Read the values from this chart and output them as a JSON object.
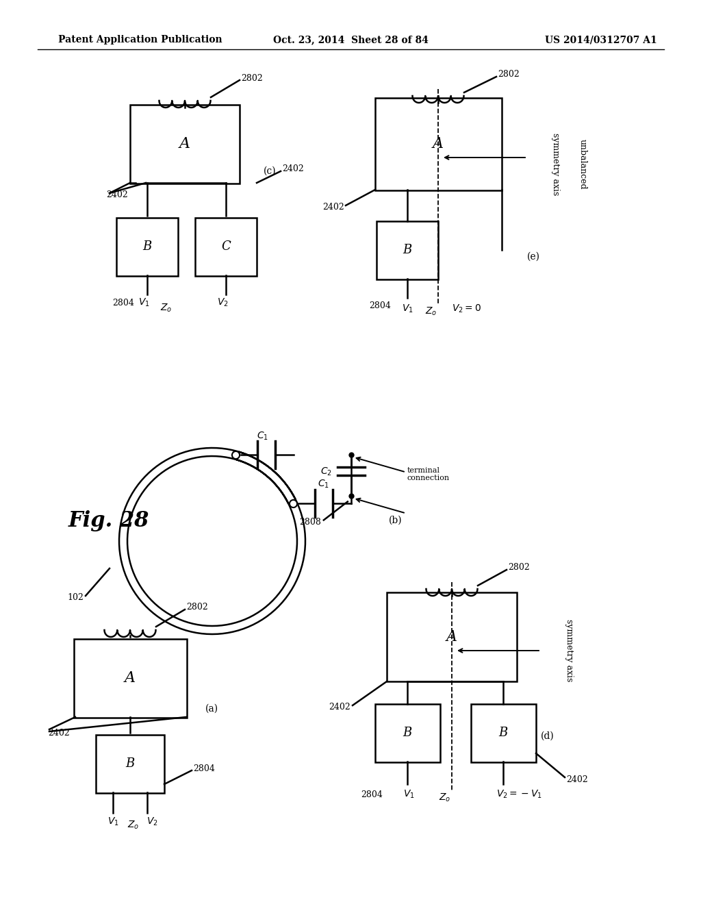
{
  "header_left": "Patent Application Publication",
  "header_center": "Oct. 23, 2014  Sheet 28 of 84",
  "header_right": "US 2014/0312707 A1",
  "background": "#ffffff",
  "fig_label": "Fig. 28",
  "diagrams": {
    "c_label": "(c)",
    "e_label": "(e)",
    "b_label": "(b)",
    "a_label": "(a)",
    "d_label": "(d)"
  }
}
